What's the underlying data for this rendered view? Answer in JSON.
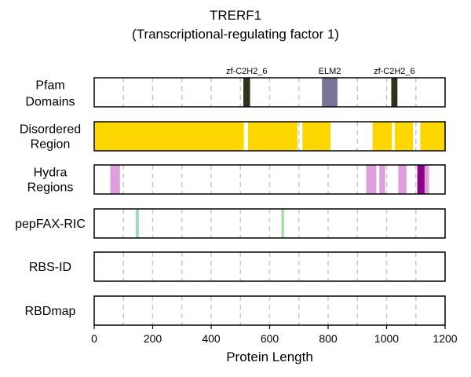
{
  "title": "TRERF1",
  "subtitle": "(Transcriptional-regulating factor 1)",
  "chart_data": {
    "type": "track",
    "xlabel": "Protein Length",
    "xlim": [
      0,
      1200
    ],
    "xticks": [
      0,
      200,
      400,
      600,
      800,
      1000,
      1200
    ],
    "gridlines": [
      100,
      200,
      300,
      400,
      500,
      600,
      700,
      800,
      900,
      1000,
      1100
    ],
    "tracks": [
      {
        "label": "Pfam\nDomains",
        "label_size": "large",
        "segments": [
          {
            "start": 510,
            "end": 533,
            "color": "#2b3319",
            "label": "zf-C2H2_6"
          },
          {
            "start": 779,
            "end": 832,
            "color": "#7a7396",
            "label": "ELM2"
          },
          {
            "start": 1016,
            "end": 1037,
            "color": "#2b3319",
            "label": "zf-C2H2_6"
          }
        ]
      },
      {
        "label": "Disordered\nRegion",
        "segments": [
          {
            "start": 0,
            "end": 512,
            "color": "#ffd700"
          },
          {
            "start": 526,
            "end": 695,
            "color": "#ffd700"
          },
          {
            "start": 712,
            "end": 808,
            "color": "#ffd700"
          },
          {
            "start": 952,
            "end": 1018,
            "color": "#ffd700"
          },
          {
            "start": 1028,
            "end": 1090,
            "color": "#ffd700"
          },
          {
            "start": 1115,
            "end": 1200,
            "color": "#ffd700"
          }
        ]
      },
      {
        "label": "Hydra\nRegions",
        "segments": [
          {
            "start": 55,
            "end": 88,
            "color": "#dda0dd"
          },
          {
            "start": 930,
            "end": 965,
            "color": "#dda0dd"
          },
          {
            "start": 975,
            "end": 995,
            "color": "#dda0dd"
          },
          {
            "start": 1040,
            "end": 1068,
            "color": "#dda0dd"
          },
          {
            "start": 1105,
            "end": 1130,
            "color": "#8b008b"
          },
          {
            "start": 1130,
            "end": 1145,
            "color": "#dda0dd"
          }
        ]
      },
      {
        "label": "pepFAX-RIC",
        "segments": [
          {
            "start": 142,
            "end": 153,
            "color": "#9fdcbf"
          },
          {
            "start": 640,
            "end": 650,
            "color": "#a8e0a8"
          }
        ]
      },
      {
        "label": "RBS-ID",
        "segments": []
      },
      {
        "label": "RBDmap",
        "segments": []
      }
    ]
  }
}
